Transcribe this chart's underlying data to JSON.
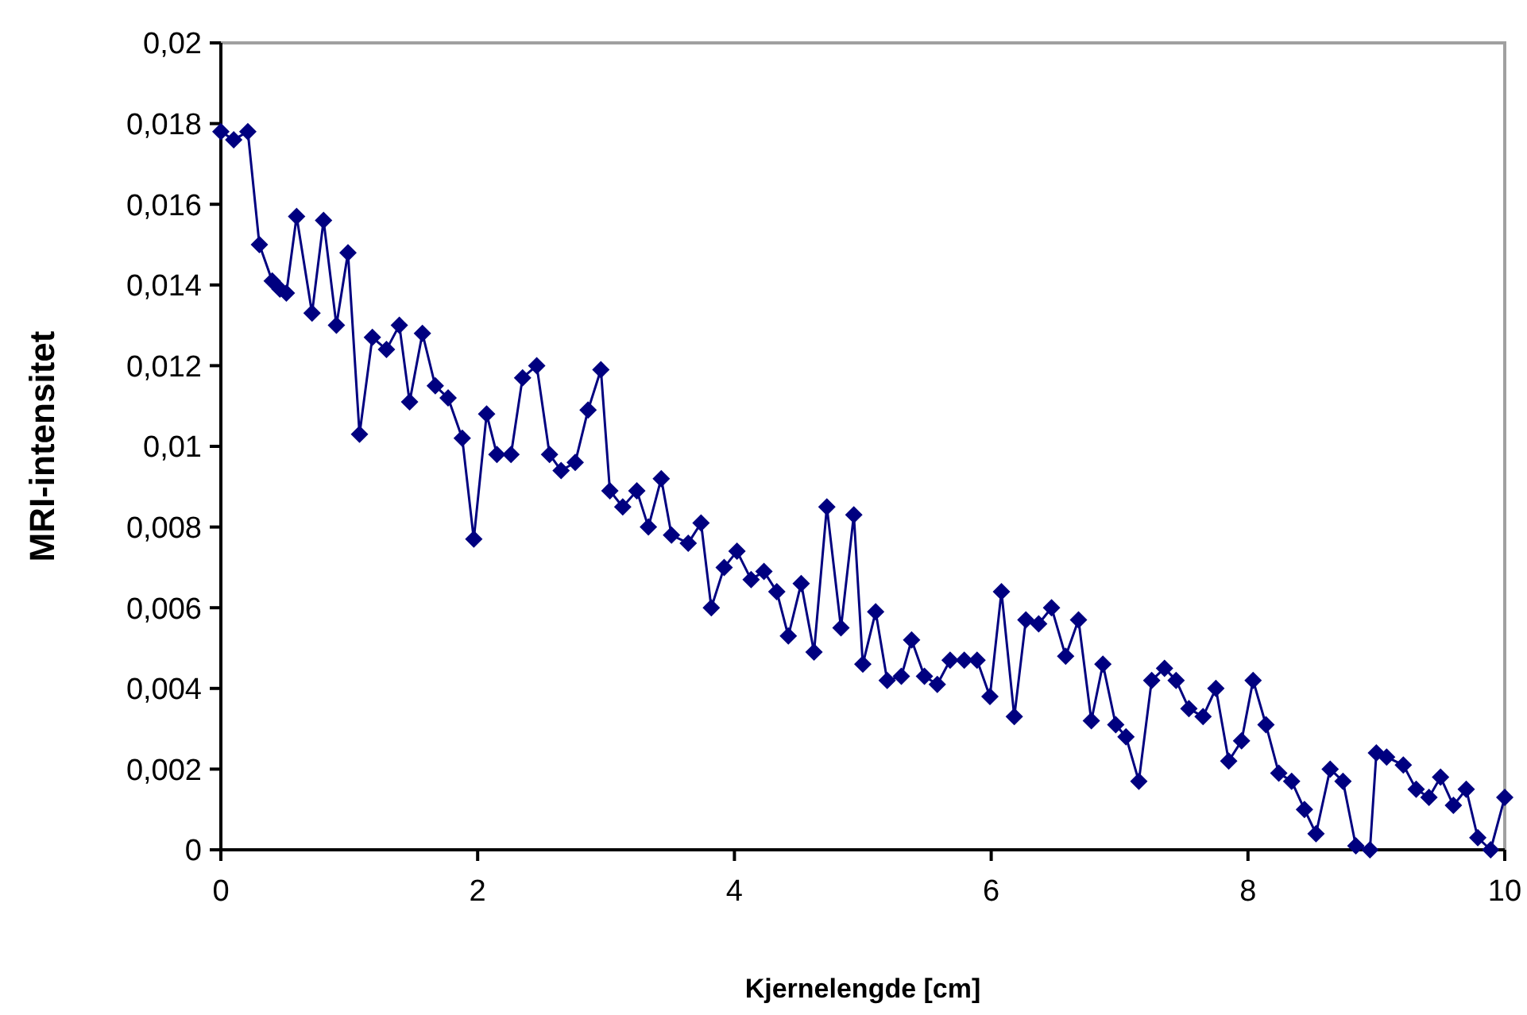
{
  "chart_data": {
    "type": "line",
    "xlabel": "Kjernelengde [cm]",
    "ylabel": "MRI-intensitet",
    "xlim": [
      0,
      10
    ],
    "xticks": [
      0,
      2,
      4,
      6,
      8,
      10
    ],
    "ylim": [
      0,
      0.02
    ],
    "yticks": [
      {
        "value": 0,
        "label": "0"
      },
      {
        "value": 0.002,
        "label": "0,002"
      },
      {
        "value": 0.004,
        "label": "0,004"
      },
      {
        "value": 0.006,
        "label": "0,006"
      },
      {
        "value": 0.008,
        "label": "0,008"
      },
      {
        "value": 0.01,
        "label": "0,01"
      },
      {
        "value": 0.012,
        "label": "0,012"
      },
      {
        "value": 0.014,
        "label": "0,014"
      },
      {
        "value": 0.016,
        "label": "0,016"
      },
      {
        "value": 0.018,
        "label": "0,018"
      },
      {
        "value": 0.02,
        "label": "0,02"
      }
    ],
    "grid": false,
    "marker": "diamond",
    "line_style": "solid",
    "series": [
      {
        "color": "#000080",
        "x": [
          0,
          0.1,
          0.21,
          0.3,
          0.4,
          0.46,
          0.51,
          0.59,
          0.71,
          0.8,
          0.9,
          0.99,
          1.08,
          1.18,
          1.29,
          1.39,
          1.47,
          1.57,
          1.67,
          1.77,
          1.88,
          1.97,
          2.07,
          2.15,
          2.26,
          2.35,
          2.46,
          2.56,
          2.65,
          2.76,
          2.86,
          2.96,
          3.03,
          3.13,
          3.24,
          3.33,
          3.43,
          3.51,
          3.64,
          3.74,
          3.82,
          3.92,
          4.02,
          4.13,
          4.23,
          4.33,
          4.42,
          4.52,
          4.62,
          4.72,
          4.83,
          4.93,
          5.0,
          5.1,
          5.19,
          5.3,
          5.38,
          5.48,
          5.58,
          5.68,
          5.79,
          5.89,
          5.99,
          6.08,
          6.18,
          6.27,
          6.37,
          6.47,
          6.58,
          6.68,
          6.78,
          6.87,
          6.97,
          7.05,
          7.15,
          7.25,
          7.35,
          7.44,
          7.54,
          7.65,
          7.75,
          7.85,
          7.95,
          8.04,
          8.14,
          8.24,
          8.34,
          8.44,
          8.53,
          8.64,
          8.74,
          8.84,
          8.95,
          9.0,
          9.08,
          9.21,
          9.31,
          9.41,
          9.5,
          9.6,
          9.7,
          9.79,
          9.89,
          10.0
        ],
        "values": [
          0.0178,
          0.0176,
          0.0178,
          0.015,
          0.0141,
          0.0139,
          0.0138,
          0.0157,
          0.0133,
          0.0156,
          0.013,
          0.0148,
          0.0103,
          0.0127,
          0.0124,
          0.013,
          0.0111,
          0.0128,
          0.0115,
          0.0112,
          0.0102,
          0.0077,
          0.0108,
          0.0098,
          0.0098,
          0.0117,
          0.012,
          0.0098,
          0.0094,
          0.0096,
          0.0109,
          0.0119,
          0.0089,
          0.0085,
          0.0089,
          0.008,
          0.0092,
          0.0078,
          0.0076,
          0.0081,
          0.006,
          0.007,
          0.0074,
          0.0067,
          0.0069,
          0.0064,
          0.0053,
          0.0066,
          0.0049,
          0.0085,
          0.0055,
          0.0083,
          0.0046,
          0.0059,
          0.0042,
          0.0043,
          0.0052,
          0.0043,
          0.0041,
          0.0047,
          0.0047,
          0.0047,
          0.0038,
          0.0064,
          0.0033,
          0.0057,
          0.0056,
          0.006,
          0.0048,
          0.0057,
          0.0032,
          0.0046,
          0.0031,
          0.0028,
          0.0017,
          0.0042,
          0.0045,
          0.0042,
          0.0035,
          0.0033,
          0.004,
          0.0022,
          0.0027,
          0.0042,
          0.0031,
          0.0019,
          0.0017,
          0.001,
          0.0004,
          0.002,
          0.0017,
          0.0001,
          0,
          0.0024,
          0.0023,
          0.0021,
          0.0015,
          0.0013,
          0.0018,
          0.0011,
          0.0015,
          0.0003,
          0,
          0.0013
        ]
      }
    ]
  }
}
